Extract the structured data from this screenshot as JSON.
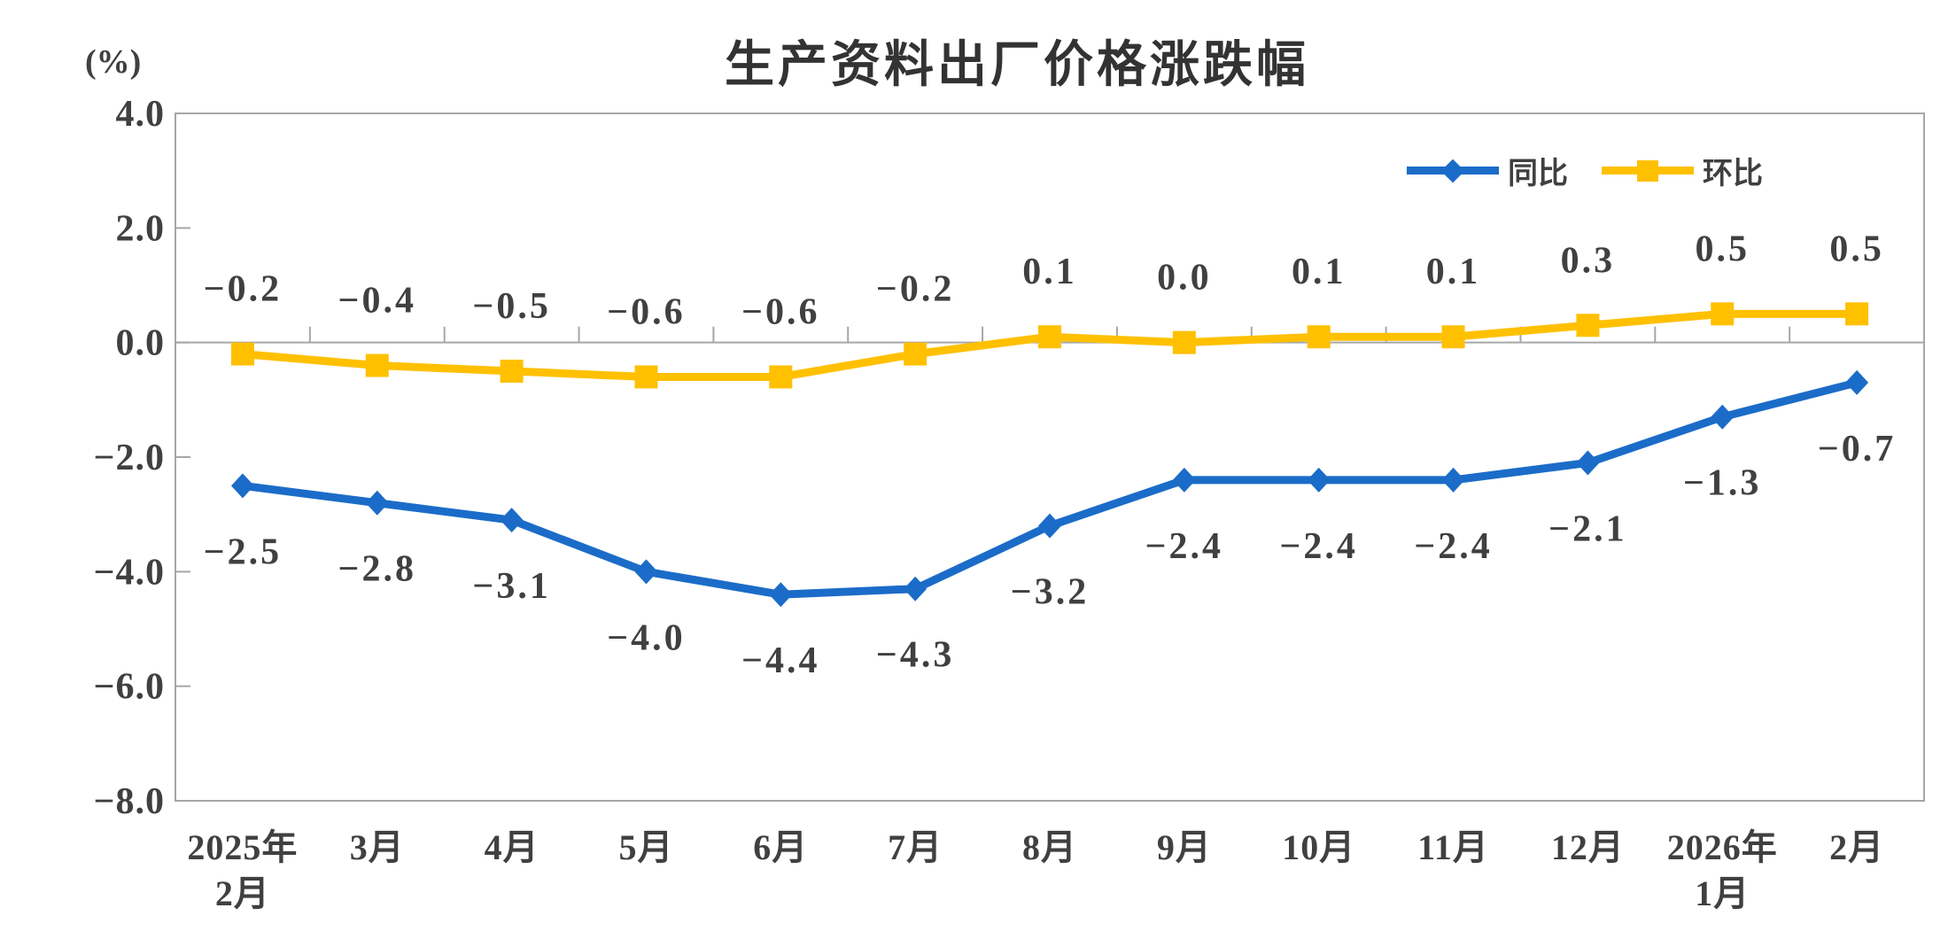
{
  "chart_data": {
    "type": "line",
    "title": "生产资料出厂价格涨跌幅",
    "unit_label": "(%)",
    "ylim": [
      -8.0,
      4.0
    ],
    "ytick_values": [
      4.0,
      2.0,
      0.0,
      -2.0,
      -4.0,
      -6.0,
      -8.0
    ],
    "ytick_labels": [
      "4.0",
      "2.0",
      "0.0",
      "-2.0",
      "-4.0",
      "-6.0",
      "-8.0"
    ],
    "categories": [
      [
        "2025年",
        "2月"
      ],
      [
        "3月"
      ],
      [
        "4月"
      ],
      [
        "5月"
      ],
      [
        "6月"
      ],
      [
        "7月"
      ],
      [
        "8月"
      ],
      [
        "9月"
      ],
      [
        "10月"
      ],
      [
        "11月"
      ],
      [
        "12月"
      ],
      [
        "2026年",
        "1月"
      ],
      [
        "2月"
      ]
    ],
    "series": [
      {
        "name": "同比",
        "marker": "diamond",
        "color": "#1B6CC8",
        "label_position": "below",
        "values": [
          -2.5,
          -2.8,
          -3.1,
          -4.0,
          -4.4,
          -4.3,
          -3.2,
          -2.4,
          -2.4,
          -2.4,
          -2.1,
          -1.3,
          -0.7
        ],
        "labels": [
          "-2.5",
          "-2.8",
          "-3.1",
          "-4.0",
          "-4.4",
          "-4.3",
          "-3.2",
          "-2.4",
          "-2.4",
          "-2.4",
          "-2.1",
          "-1.3",
          "-0.7"
        ]
      },
      {
        "name": "环比",
        "marker": "square",
        "color": "#FFC000",
        "label_position": "above",
        "values": [
          -0.2,
          -0.4,
          -0.5,
          -0.6,
          -0.6,
          -0.2,
          0.1,
          0.0,
          0.1,
          0.1,
          0.3,
          0.5,
          0.5
        ],
        "labels": [
          "-0.2",
          "-0.4",
          "-0.5",
          "-0.6",
          "-0.6",
          "-0.2",
          "0.1",
          "0.0",
          "0.1",
          "0.1",
          "0.3",
          "0.5",
          "0.5"
        ]
      }
    ],
    "legend_position": "top-right",
    "grid": false,
    "axis_color": "#A6A6A6",
    "text_color": "#404040"
  }
}
